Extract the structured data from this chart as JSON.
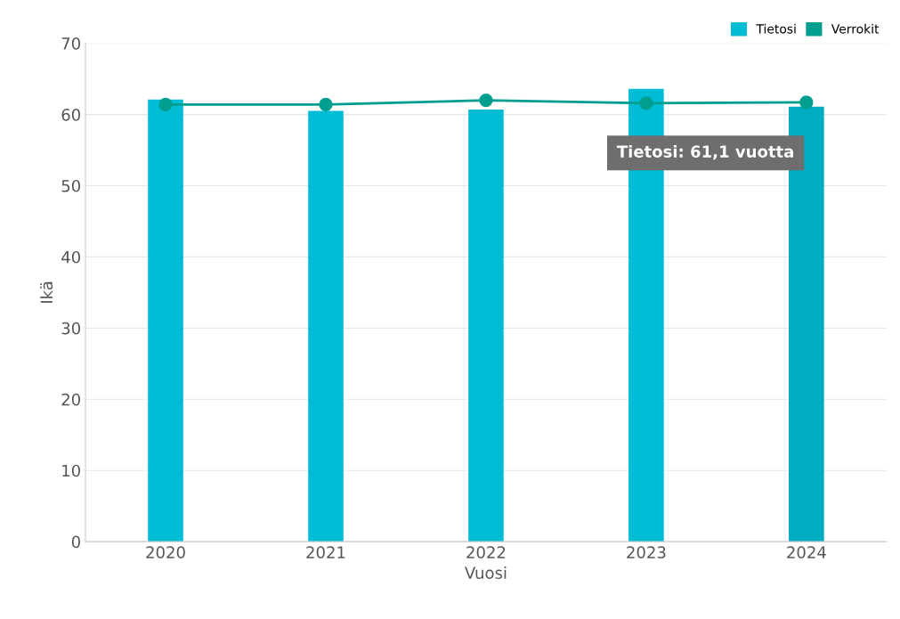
{
  "chart_data": {
    "type": "bar",
    "xlabel": "Vuosi",
    "ylabel": "Ikä",
    "categories": [
      "2020",
      "2021",
      "2022",
      "2023",
      "2024"
    ],
    "series": [
      {
        "name": "Tietosi",
        "color": "#00bcd4",
        "colors": [
          "#00bcd4",
          "#00bcd4",
          "#00bcd4",
          "#00bcd4",
          "#00acc1"
        ],
        "values": [
          62.1,
          60.5,
          60.7,
          63.6,
          61.1
        ]
      },
      {
        "name": "Verrokit",
        "type": "line",
        "color": "#009e8f",
        "marker": "circle",
        "values": [
          61.4,
          61.4,
          62.0,
          61.6,
          61.7
        ]
      }
    ],
    "ylim": [
      0,
      70
    ],
    "yticks": [
      0,
      10,
      20,
      30,
      40,
      50,
      60,
      70
    ],
    "grid": "y",
    "legend": "top right",
    "annotations": [
      "Tietosi: 61,1 vuotta"
    ]
  }
}
